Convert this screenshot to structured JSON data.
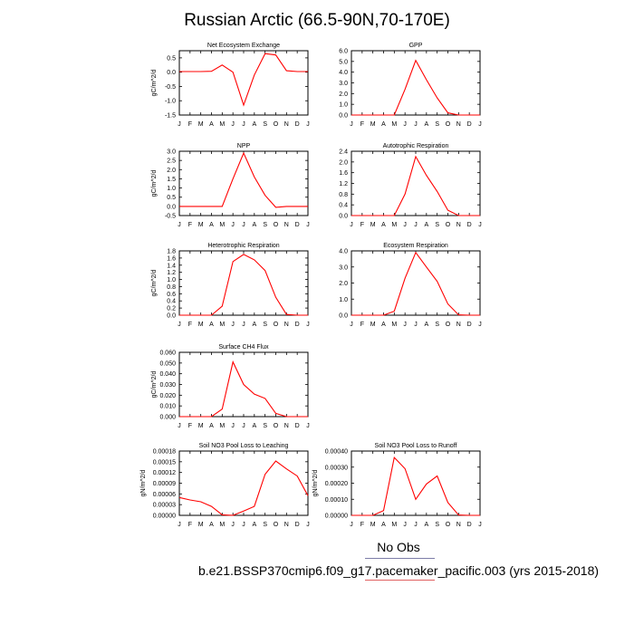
{
  "title": "Russian Arctic (66.5-90N,70-170E)",
  "legend_label": "No Obs",
  "caption": "b.e21.BSSP370cmip6.f09_g17.pacemaker_pacific.003 (yrs 2015-2018)",
  "colors": {
    "line": "#ff0000",
    "axis": "#000000",
    "legend_line": "#7d7da8",
    "caption_line": "#e06060"
  },
  "chart_data": [
    {
      "type": "line",
      "title": "Net Ecosystem Exchange",
      "ylabel": "gC/m^2/d",
      "x": [
        "J",
        "F",
        "M",
        "A",
        "M",
        "J",
        "J",
        "A",
        "S",
        "O",
        "N",
        "D",
        "J"
      ],
      "ylim": [
        -1.5,
        0.75
      ],
      "yticks": [
        "0.5",
        "0.0",
        "-0.5",
        "-1.0",
        "-1.5"
      ],
      "ytick_values": [
        0.5,
        0.0,
        -0.5,
        -1.0,
        -1.5
      ],
      "series": [
        {
          "values": [
            0.02,
            0.02,
            0.02,
            0.03,
            0.25,
            0.0,
            -1.15,
            -0.1,
            0.65,
            0.6,
            0.05,
            0.02,
            0.02
          ]
        }
      ]
    },
    {
      "type": "line",
      "title": "GPP",
      "ylabel": "",
      "x": [
        "J",
        "F",
        "M",
        "A",
        "M",
        "J",
        "J",
        "A",
        "S",
        "O",
        "N",
        "D",
        "J"
      ],
      "ylim": [
        0,
        6
      ],
      "yticks": [
        "6.0",
        "5.0",
        "4.0",
        "3.0",
        "2.0",
        "1.0",
        "0.0"
      ],
      "ytick_values": [
        6,
        5,
        4,
        3,
        2,
        1,
        0
      ],
      "series": [
        {
          "values": [
            0,
            0,
            0,
            0,
            0,
            2.4,
            5.1,
            3.3,
            1.6,
            0.2,
            0,
            0,
            0
          ]
        }
      ]
    },
    {
      "type": "line",
      "title": "NPP",
      "ylabel": "gC/m^2/d",
      "x": [
        "J",
        "F",
        "M",
        "A",
        "M",
        "J",
        "J",
        "A",
        "S",
        "O",
        "N",
        "D",
        "J"
      ],
      "ylim": [
        -0.5,
        3.0
      ],
      "yticks": [
        "3.0",
        "2.5",
        "2.0",
        "1.5",
        "1.0",
        "0.5",
        "0.0",
        "-0.5"
      ],
      "ytick_values": [
        3.0,
        2.5,
        2.0,
        1.5,
        1.0,
        0.5,
        0.0,
        -0.5
      ],
      "series": [
        {
          "values": [
            0,
            0,
            0,
            0,
            0,
            1.5,
            2.9,
            1.6,
            0.6,
            -0.05,
            0,
            0,
            0
          ]
        }
      ]
    },
    {
      "type": "line",
      "title": "Autotrophic Respiration",
      "ylabel": "",
      "x": [
        "J",
        "F",
        "M",
        "A",
        "M",
        "J",
        "J",
        "A",
        "S",
        "O",
        "N",
        "D",
        "J"
      ],
      "ylim": [
        0,
        2.4
      ],
      "yticks": [
        "2.4",
        "2.0",
        "1.6",
        "1.2",
        "0.8",
        "0.4",
        "0.0"
      ],
      "ytick_values": [
        2.4,
        2.0,
        1.6,
        1.2,
        0.8,
        0.4,
        0.0
      ],
      "series": [
        {
          "values": [
            0,
            0,
            0,
            0,
            0,
            0.8,
            2.2,
            1.5,
            0.9,
            0.2,
            0,
            0,
            0
          ]
        }
      ]
    },
    {
      "type": "line",
      "title": "Heterotrophic Respiration",
      "ylabel": "gC/m^2/d",
      "x": [
        "J",
        "F",
        "M",
        "A",
        "M",
        "J",
        "J",
        "A",
        "S",
        "O",
        "N",
        "D",
        "J"
      ],
      "ylim": [
        0,
        1.8
      ],
      "yticks": [
        "1.8",
        "1.6",
        "1.4",
        "1.2",
        "1.0",
        "0.8",
        "0.6",
        "0.4",
        "0.2",
        "0.0"
      ],
      "ytick_values": [
        1.8,
        1.6,
        1.4,
        1.2,
        1.0,
        0.8,
        0.6,
        0.4,
        0.2,
        0.0
      ],
      "series": [
        {
          "values": [
            0,
            0,
            0,
            0,
            0.25,
            1.5,
            1.7,
            1.55,
            1.25,
            0.5,
            0.02,
            0,
            0
          ]
        }
      ]
    },
    {
      "type": "line",
      "title": "Ecosystem Respiration",
      "ylabel": "",
      "x": [
        "J",
        "F",
        "M",
        "A",
        "M",
        "J",
        "J",
        "A",
        "S",
        "O",
        "N",
        "D",
        "J"
      ],
      "ylim": [
        0,
        4.0
      ],
      "yticks": [
        "4.0",
        "3.0",
        "2.0",
        "1.0",
        "0.0"
      ],
      "ytick_values": [
        4.0,
        3.0,
        2.0,
        1.0,
        0.0
      ],
      "series": [
        {
          "values": [
            0,
            0,
            0,
            0,
            0.25,
            2.3,
            3.9,
            3.0,
            2.1,
            0.7,
            0.02,
            0,
            0
          ]
        }
      ]
    },
    {
      "type": "line",
      "title": "Surface CH4 Flux",
      "ylabel": "gC/m^2/d",
      "x": [
        "J",
        "F",
        "M",
        "A",
        "M",
        "J",
        "J",
        "A",
        "S",
        "O",
        "N",
        "D",
        "J"
      ],
      "ylim": [
        0,
        0.06
      ],
      "yticks": [
        "0.060",
        "0.050",
        "0.040",
        "0.030",
        "0.020",
        "0.010",
        "0.000"
      ],
      "ytick_values": [
        0.06,
        0.05,
        0.04,
        0.03,
        0.02,
        0.01,
        0.0
      ],
      "series": [
        {
          "values": [
            0,
            0,
            0,
            0,
            0.007,
            0.051,
            0.03,
            0.021,
            0.017,
            0.003,
            0,
            0,
            0
          ]
        }
      ]
    },
    {
      "type": "line",
      "title": "Soil NO3 Pool Loss to Leaching",
      "ylabel": "gN/m^2/d",
      "x": [
        "J",
        "F",
        "M",
        "A",
        "M",
        "J",
        "J",
        "A",
        "S",
        "O",
        "N",
        "D",
        "J"
      ],
      "ylim": [
        0,
        0.00018
      ],
      "yticks": [
        "0.00018",
        "0.00015",
        "0.00012",
        "0.00009",
        "0.00006",
        "0.00003",
        "0.00000"
      ],
      "ytick_values": [
        0.00018,
        0.00015,
        0.00012,
        9e-05,
        6e-05,
        3e-05,
        0.0
      ],
      "series": [
        {
          "values": [
            5e-05,
            4.3e-05,
            3.8e-05,
            2.5e-05,
            1.5e-06,
            0.0,
            1.2e-05,
            2.5e-05,
            0.000115,
            0.000152,
            0.00013,
            0.00011,
            5.5e-05
          ]
        }
      ]
    },
    {
      "type": "line",
      "title": "Soil NO3 Pool Loss to Runoff",
      "ylabel": "gN/m^2/d",
      "x": [
        "J",
        "F",
        "M",
        "A",
        "M",
        "J",
        "J",
        "A",
        "S",
        "O",
        "N",
        "D",
        "J"
      ],
      "ylim": [
        0,
        0.0004
      ],
      "yticks": [
        "0.00040",
        "0.00030",
        "0.00020",
        "0.00010",
        "0.00000"
      ],
      "ytick_values": [
        0.0004,
        0.0003,
        0.0002,
        0.0001,
        0.0
      ],
      "series": [
        {
          "values": [
            0,
            0,
            0,
            3e-05,
            0.00036,
            0.00029,
            0.0001,
            0.000195,
            0.000245,
            8e-05,
            2e-06,
            0,
            0
          ]
        }
      ]
    }
  ]
}
